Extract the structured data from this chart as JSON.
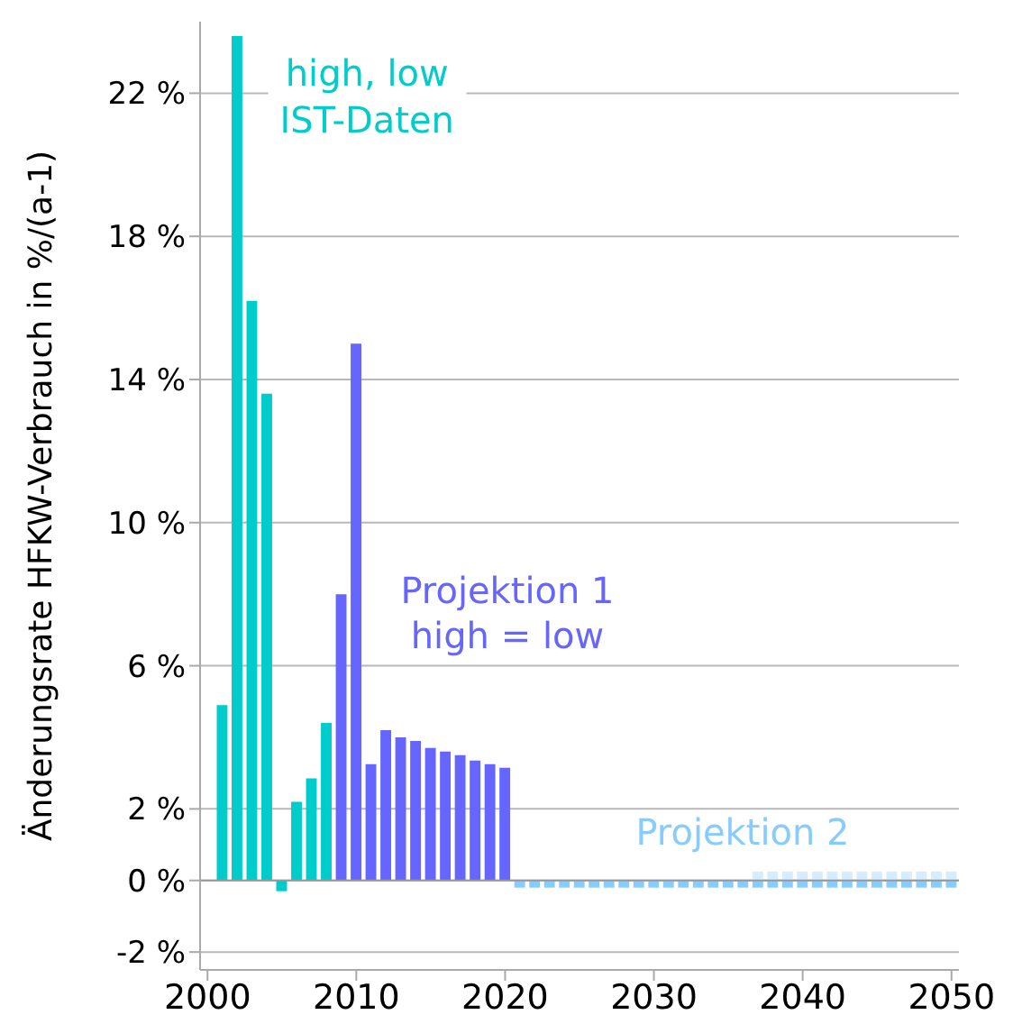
{
  "chart_data": {
    "type": "bar",
    "ylabel": "Änderungsrate HFKW-Verbrauch in %/(a-1)",
    "x": [
      2001,
      2002,
      2003,
      2004,
      2005,
      2006,
      2007,
      2008,
      2009,
      2010,
      2011,
      2012,
      2013,
      2014,
      2015,
      2016,
      2017,
      2018,
      2019,
      2020,
      2021,
      2022,
      2023,
      2024,
      2025,
      2026,
      2027,
      2028,
      2029,
      2030,
      2031,
      2032,
      2033,
      2034,
      2035,
      2036,
      2037,
      2038,
      2039,
      2040,
      2041,
      2042,
      2043,
      2044,
      2045,
      2046,
      2047,
      2048,
      2049,
      2050
    ],
    "series": [
      {
        "color": "#00cccc",
        "values": [
          4.9,
          23.6,
          16.2,
          13.6,
          -0.3,
          2.2,
          2.85,
          4.4,
          null,
          null,
          null,
          null,
          null,
          null,
          null,
          null,
          null,
          null,
          null,
          null,
          null,
          null,
          null,
          null,
          null,
          null,
          null,
          null,
          null,
          null,
          null,
          null,
          null,
          null,
          null,
          null,
          null,
          null,
          null,
          null,
          null,
          null,
          null,
          null,
          null,
          null,
          null,
          null,
          null,
          null
        ]
      },
      {
        "color": "#6666ff",
        "values": [
          null,
          null,
          null,
          null,
          null,
          null,
          null,
          null,
          8.0,
          15.0,
          3.25,
          4.2,
          4.0,
          3.9,
          3.7,
          3.6,
          3.5,
          3.35,
          3.25,
          3.15,
          null,
          null,
          null,
          null,
          null,
          null,
          null,
          null,
          null,
          null,
          null,
          null,
          null,
          null,
          null,
          null,
          null,
          null,
          null,
          null,
          null,
          null,
          null,
          null,
          null,
          null,
          null,
          null,
          null,
          null
        ]
      },
      {
        "color": "#88ccff",
        "values": [
          null,
          null,
          null,
          null,
          null,
          null,
          null,
          null,
          null,
          null,
          null,
          null,
          null,
          null,
          null,
          null,
          null,
          null,
          null,
          null,
          -0.2,
          -0.2,
          -0.2,
          -0.2,
          -0.2,
          -0.2,
          -0.2,
          -0.2,
          -0.2,
          -0.2,
          -0.2,
          -0.2,
          -0.2,
          -0.2,
          -0.2,
          -0.2,
          -0.2,
          -0.2,
          -0.2,
          -0.2,
          -0.2,
          -0.2,
          -0.2,
          -0.2,
          -0.2,
          -0.2,
          -0.2,
          -0.2,
          -0.2,
          -0.2
        ]
      },
      {
        "color": "#d6ecff",
        "values": [
          null,
          null,
          null,
          null,
          null,
          null,
          null,
          null,
          null,
          null,
          null,
          null,
          null,
          null,
          null,
          null,
          null,
          null,
          null,
          null,
          null,
          null,
          null,
          null,
          null,
          null,
          null,
          null,
          null,
          null,
          null,
          null,
          null,
          null,
          null,
          null,
          0.25,
          0.25,
          0.25,
          0.25,
          0.25,
          0.25,
          0.25,
          0.25,
          0.25,
          0.25,
          0.25,
          0.25,
          0.25,
          0.25
        ]
      }
    ],
    "stacked": true,
    "xlim": [
      1999.5,
      2050.5
    ],
    "xticks": [
      2000,
      2010,
      2020,
      2030,
      2040,
      2050
    ],
    "ylim": [
      -2.5,
      24
    ],
    "yticks": [
      {
        "value": -2,
        "label": "-2 %"
      },
      {
        "value": 0,
        "label": "0 %"
      },
      {
        "value": 2,
        "label": "2 %"
      },
      {
        "value": 6,
        "label": "6 %"
      },
      {
        "value": 10,
        "label": "10 %"
      },
      {
        "value": 14,
        "label": "14 %"
      },
      {
        "value": 18,
        "label": "18 %"
      },
      {
        "value": 22,
        "label": "22 %"
      }
    ],
    "grid": "y",
    "annotations": [
      "high, low",
      "IST-Daten",
      "Projektion 1",
      "high = low",
      "Projektion 2"
    ]
  }
}
